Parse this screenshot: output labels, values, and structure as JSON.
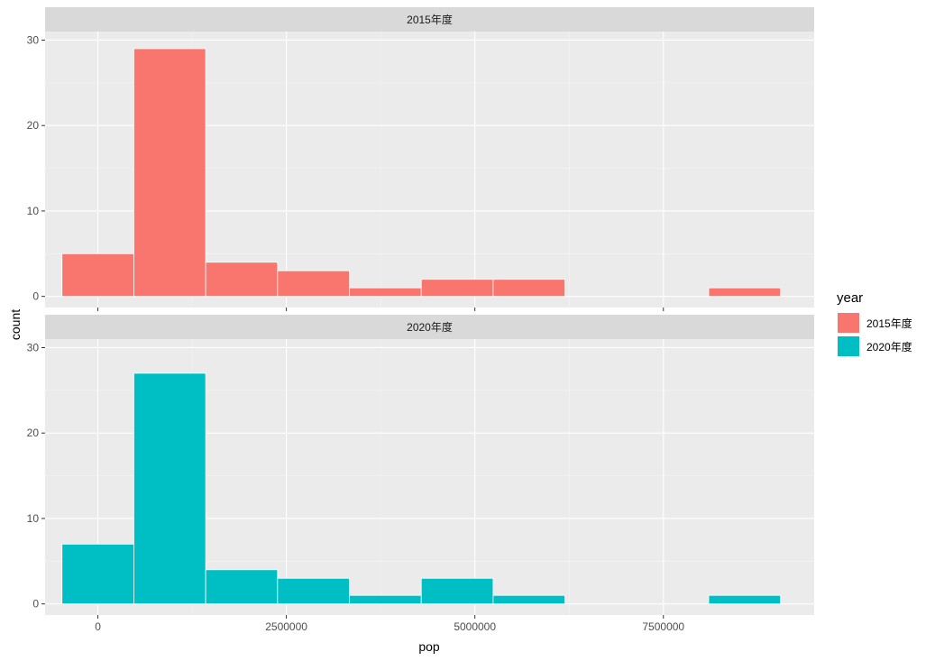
{
  "chart_data": {
    "type": "histogram",
    "xlabel": "pop",
    "ylabel": "count",
    "xlim": [
      -700000,
      9500000
    ],
    "ylim": [
      -1.3,
      31
    ],
    "x_ticks": [
      {
        "value": 0,
        "label": "0"
      },
      {
        "value": 2500000,
        "label": "2500000"
      },
      {
        "value": 5000000,
        "label": "5000000"
      },
      {
        "value": 7500000,
        "label": "7500000"
      }
    ],
    "y_ticks": [
      {
        "value": 0,
        "label": "0"
      },
      {
        "value": 10,
        "label": "10"
      },
      {
        "value": 20,
        "label": "20"
      },
      {
        "value": 30,
        "label": "30"
      }
    ],
    "bins": [
      [
        -476000,
        477000
      ],
      [
        477000,
        1430000
      ],
      [
        1430000,
        2383000
      ],
      [
        2383000,
        3336000
      ],
      [
        3336000,
        4289000
      ],
      [
        4289000,
        5242000
      ],
      [
        5242000,
        6195000
      ],
      [
        6195000,
        7148000
      ],
      [
        7148000,
        8101000
      ],
      [
        8101000,
        9054000
      ]
    ],
    "legend": {
      "title": "year",
      "position": "right",
      "entries": [
        {
          "label": "2015年度",
          "color": "#F8766D"
        },
        {
          "label": "2020年度",
          "color": "#00BFC4"
        }
      ]
    },
    "facets": [
      {
        "strip": "2015年度",
        "color": "#F8766D",
        "counts": [
          5,
          29,
          4,
          3,
          1,
          2,
          2,
          0,
          0,
          1
        ]
      },
      {
        "strip": "2020年度",
        "color": "#00BFC4",
        "counts": [
          7,
          27,
          4,
          3,
          1,
          3,
          1,
          0,
          0,
          1
        ]
      }
    ]
  }
}
